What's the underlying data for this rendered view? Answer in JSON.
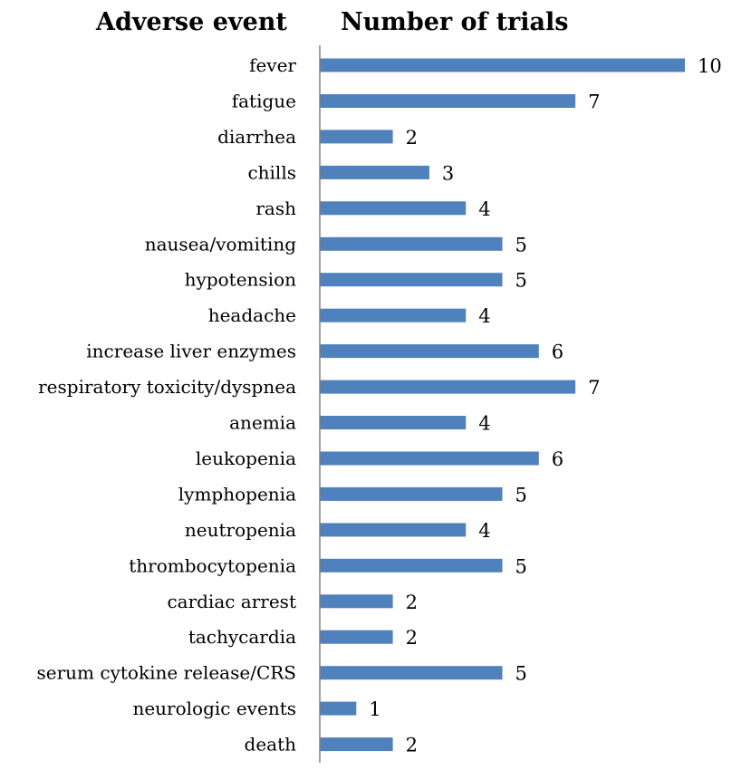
{
  "headers": {
    "left": "Adverse event",
    "right": "Number of trials"
  },
  "chart_data": {
    "type": "bar",
    "orientation": "horizontal",
    "categories": [
      "fever",
      "fatigue",
      "diarrhea",
      "chills",
      "rash",
      "nausea/vomiting",
      "hypotension",
      "headache",
      "increase liver enzymes",
      "respiratory toxicity/dyspnea",
      "anemia",
      "leukopenia",
      "lymphopenia",
      "neutropenia",
      "thrombocytopenia",
      "cardiac arrest",
      "tachycardia",
      "serum cytokine release/CRS",
      "neurologic events",
      "death"
    ],
    "values": [
      10,
      7,
      2,
      3,
      4,
      5,
      5,
      4,
      6,
      7,
      4,
      6,
      5,
      4,
      5,
      2,
      2,
      5,
      1,
      2
    ],
    "xlim": [
      0,
      10
    ],
    "grid": false,
    "data_labels": true,
    "bar_color": "#4f81bd",
    "axis_color": "#808080"
  }
}
